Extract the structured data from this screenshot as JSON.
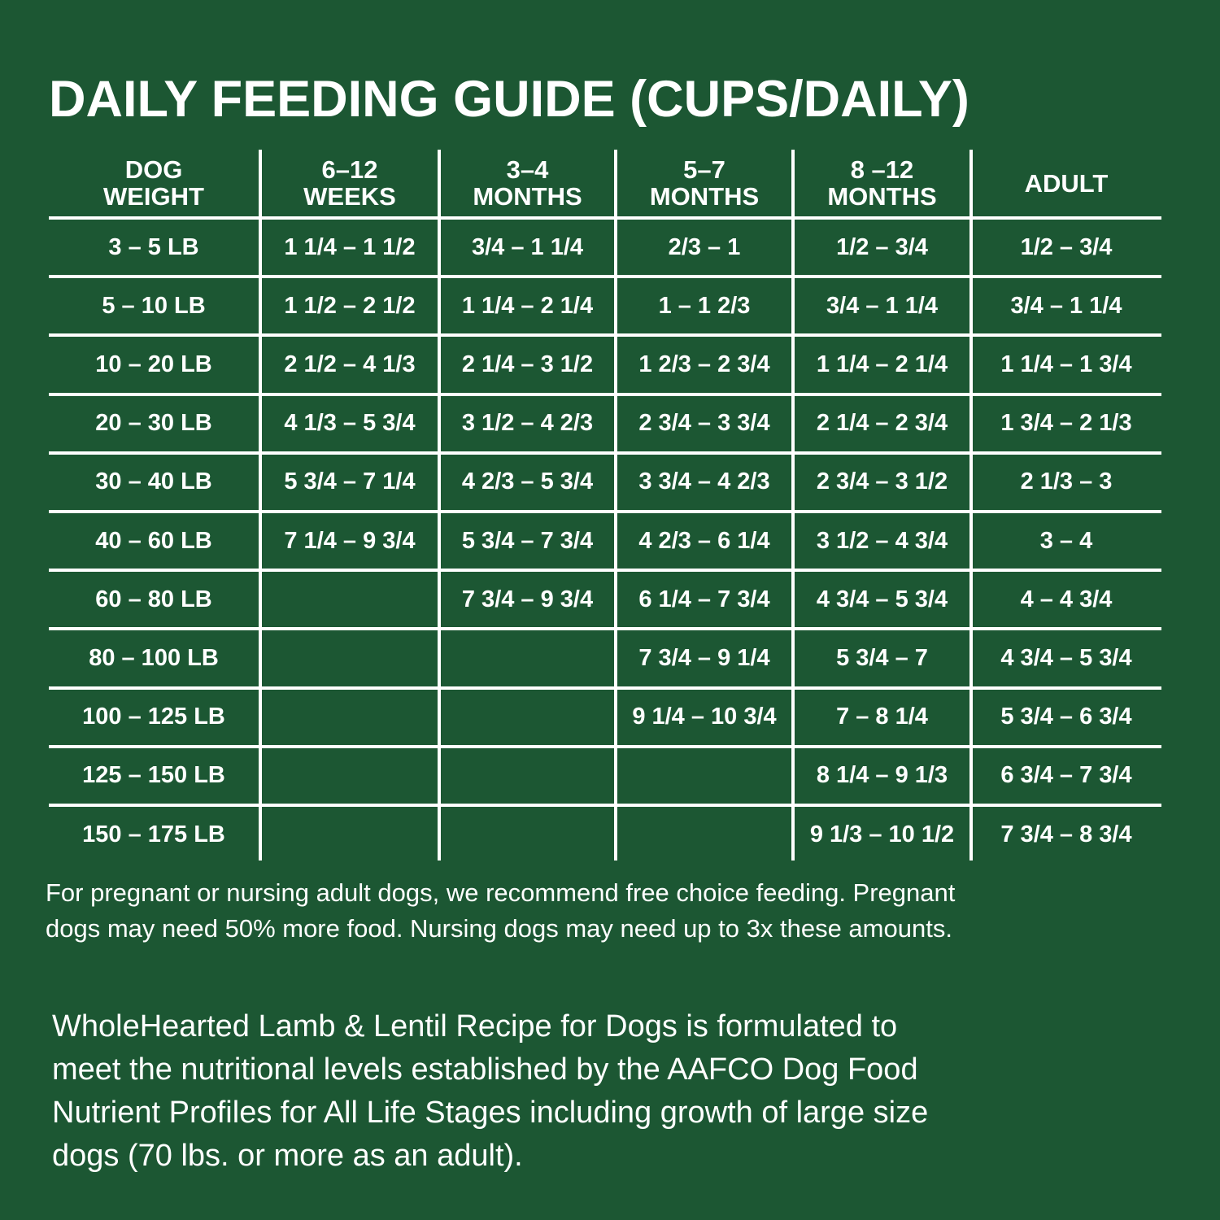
{
  "title": "DAILY FEEDING GUIDE (CUPS/DAILY)",
  "table": {
    "headers": [
      [
        "DOG",
        "WEIGHT"
      ],
      [
        "6–12",
        "WEEKS"
      ],
      [
        "3–4",
        "MONTHS"
      ],
      [
        "5–7",
        "MONTHS"
      ],
      [
        "8 –12",
        "MONTHS"
      ],
      [
        "ADULT"
      ]
    ],
    "rows": [
      [
        "3 – 5 LB",
        "1 1/4 – 1 1/2",
        "3/4 – 1 1/4",
        "2/3 – 1",
        "1/2 – 3/4",
        "1/2 – 3/4"
      ],
      [
        "5 – 10 LB",
        "1 1/2 – 2 1/2",
        "1 1/4 – 2 1/4",
        "1 – 1 2/3",
        "3/4 – 1 1/4",
        "3/4 – 1 1/4"
      ],
      [
        "10 – 20 LB",
        "2 1/2 – 4 1/3",
        "2 1/4 – 3 1/2",
        "1 2/3 – 2 3/4",
        "1 1/4 – 2 1/4",
        "1 1/4 – 1 3/4"
      ],
      [
        "20 – 30 LB",
        "4 1/3 – 5 3/4",
        "3 1/2 – 4 2/3",
        "2 3/4 – 3 3/4",
        "2 1/4 – 2 3/4",
        "1 3/4 – 2 1/3"
      ],
      [
        "30 – 40 LB",
        "5 3/4 – 7 1/4",
        "4 2/3 – 5 3/4",
        "3 3/4 – 4 2/3",
        "2 3/4 – 3 1/2",
        "2 1/3 – 3"
      ],
      [
        "40 – 60 LB",
        "7 1/4 – 9 3/4",
        "5 3/4 – 7 3/4",
        "4 2/3 – 6 1/4",
        "3 1/2 – 4 3/4",
        "3 – 4"
      ],
      [
        "60 – 80 LB",
        "",
        "7 3/4 – 9 3/4",
        "6 1/4 – 7 3/4",
        "4 3/4 – 5 3/4",
        "4 – 4 3/4"
      ],
      [
        "80 – 100 LB",
        "",
        "",
        "7 3/4 – 9 1/4",
        "5 3/4 – 7",
        "4 3/4 – 5 3/4"
      ],
      [
        "100 – 125 LB",
        "",
        "",
        "9 1/4 – 10 3/4",
        "7 – 8 1/4",
        "5 3/4 – 6 3/4"
      ],
      [
        "125 – 150 LB",
        "",
        "",
        "",
        "8 1/4 – 9 1/3",
        "6 3/4 – 7 3/4"
      ],
      [
        "150 – 175 LB",
        "",
        "",
        "",
        "9 1/3 – 10 1/2",
        "7 3/4 – 8 3/4"
      ]
    ]
  },
  "note": {
    "line1": "For pregnant or nursing adult dogs, we recommend free choice feeding. Pregnant",
    "line2": "dogs may need 50% more food. Nursing dogs may need up to 3x these amounts."
  },
  "statement": {
    "line1": "WholeHearted Lamb & Lentil Recipe for Dogs is formulated to",
    "line2": "meet the nutritional levels established by the AAFCO Dog Food",
    "line3": "Nutrient Profiles for All Life Stages including growth of large size",
    "line4": "dogs (70 lbs. or more as an adult)."
  }
}
